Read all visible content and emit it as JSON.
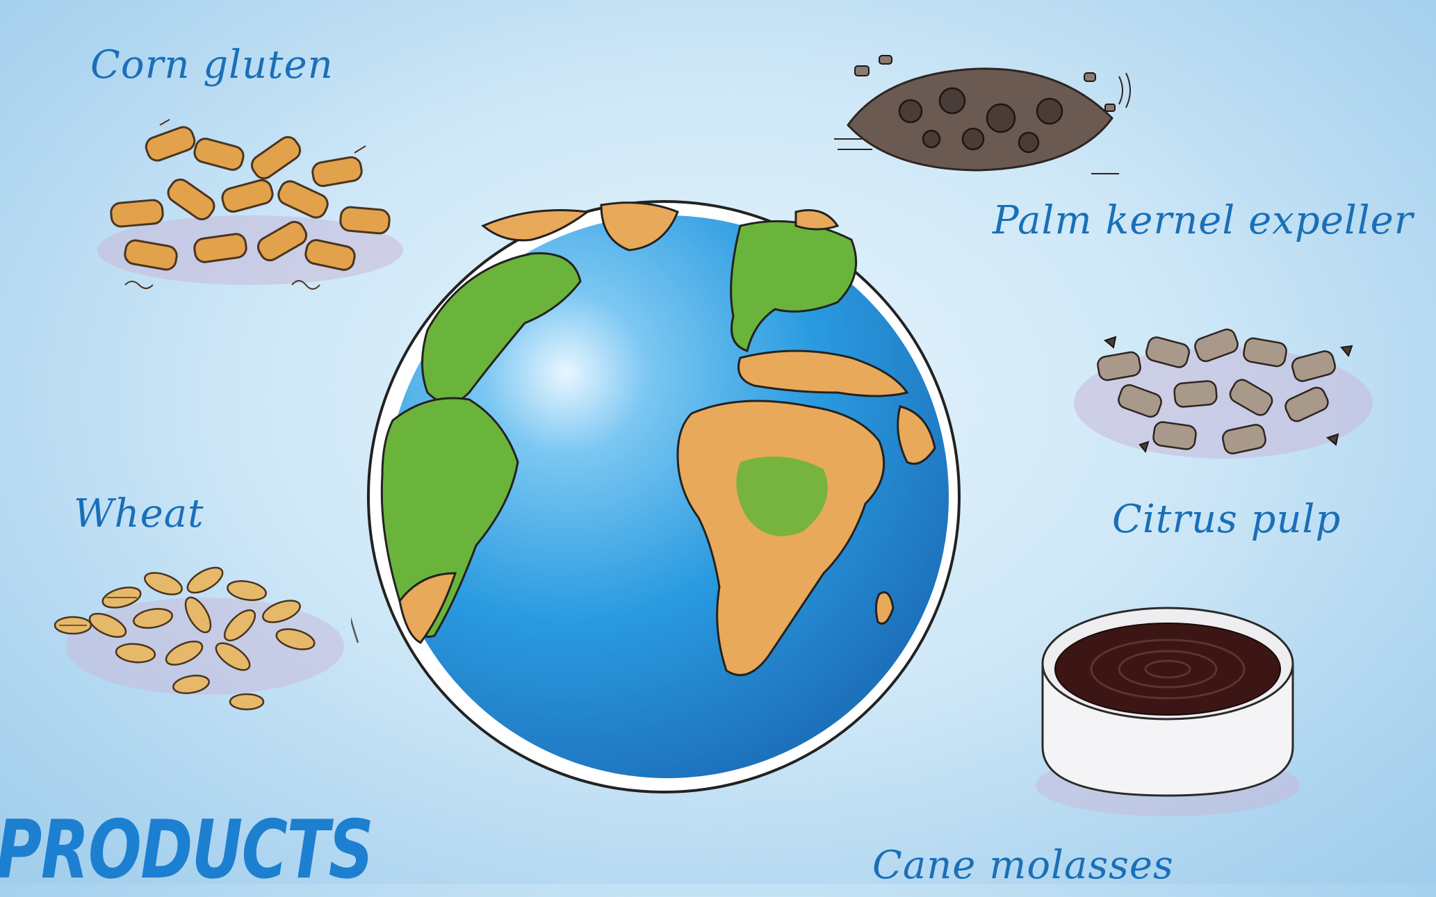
{
  "labels": {
    "corn": "Corn gluten",
    "wheat": "Wheat",
    "palm": "Palm kernel expeller",
    "citrus": "Citrus pulp",
    "cane": "Cane molasses"
  },
  "title": "PRODUCTS",
  "colors": {
    "background": "#cfe8f7",
    "label_text": "#1a6fb8",
    "title_text": "#1d7fd0",
    "ocean": "#2a9be0",
    "land_green": "#6ab43c",
    "land_orange": "#e9a95a",
    "corn_pellet": "#e2a24c",
    "wheat_grain": "#e6b96a",
    "palm_kernel": "#5a4a42",
    "citrus_pellet": "#9c8c7a",
    "molasses": "#3b1614"
  },
  "icons": [
    "globe-illustration",
    "corn-gluten-pellets",
    "wheat-grains",
    "palm-kernel-pile",
    "citrus-pulp-pellets",
    "molasses-dish"
  ]
}
